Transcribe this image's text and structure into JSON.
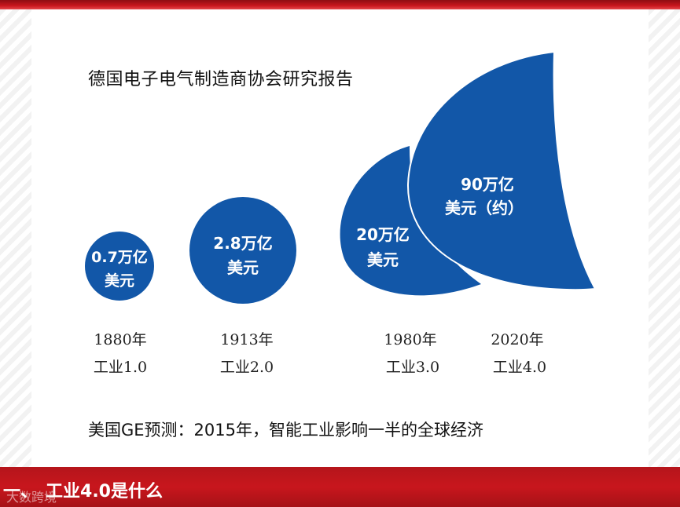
{
  "slide": {
    "title": "德国电子电气制造商协会研究报告",
    "forecast": "美国GE预测：2015年，智能工业影响一半的全球经济",
    "footer": {
      "dash": "一、",
      "section_title": "工业4.0是什么",
      "watermark": "大数跨境"
    }
  },
  "stages": [
    {
      "value_line1": "0.7万亿",
      "value_line2": "美元",
      "year": "1880年",
      "era": "工业1.0"
    },
    {
      "value_line1": "2.8万亿",
      "value_line2": "美元",
      "year": "1913年",
      "era": "工业2.0"
    },
    {
      "value_line1": "20万亿",
      "value_line2": "美元",
      "year": "1980年",
      "era": "工业3.0"
    },
    {
      "value_line1": "90万亿",
      "value_line2": "美元（约）",
      "year": "2020年",
      "era": "工业4.0"
    }
  ],
  "colors": {
    "bubble": "#1257a8",
    "band": "#c8161d",
    "bubble_text": "#ffffff"
  }
}
